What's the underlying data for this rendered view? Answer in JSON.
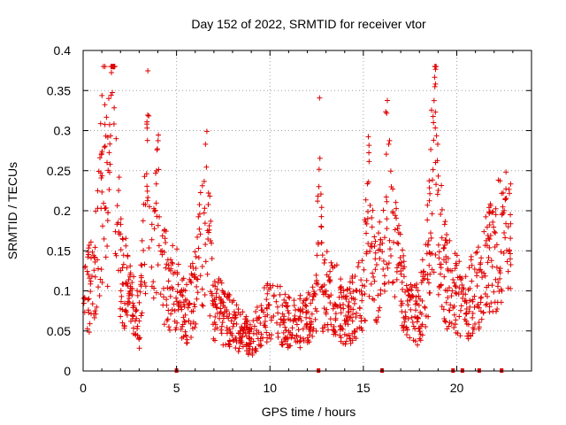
{
  "chart_data": {
    "type": "scatter",
    "title": "Day 152 of 2022, SRMTID for receiver vtor",
    "xlabel": "GPS time / hours",
    "ylabel": "SRMTID / TECUs",
    "xlim": [
      0,
      24
    ],
    "ylim": [
      0,
      0.4
    ],
    "xticks": [
      0,
      5,
      10,
      15,
      20
    ],
    "xtick_labels": [
      "0",
      "5",
      "10",
      "15",
      "20"
    ],
    "yticks": [
      0,
      0.05,
      0.1,
      0.15,
      0.2,
      0.25,
      0.3,
      0.35,
      0.4
    ],
    "ytick_labels": [
      "0",
      "0.05",
      "0.1",
      "0.15",
      "0.2",
      "0.25",
      "0.3",
      "0.35",
      "0.4"
    ],
    "grid": true,
    "marker": "plus",
    "color": "#e00000",
    "series": [
      {
        "name": "SRMTID",
        "profile": [
          [
            0.0,
            0.1
          ],
          [
            0.3,
            0.1
          ],
          [
            0.6,
            0.13
          ],
          [
            0.9,
            0.19
          ],
          [
            1.1,
            0.26
          ],
          [
            1.3,
            0.23
          ],
          [
            1.5,
            0.3
          ],
          [
            1.65,
            0.37
          ],
          [
            1.85,
            0.22
          ],
          [
            2.0,
            0.13
          ],
          [
            2.5,
            0.09
          ],
          [
            3.0,
            0.06
          ],
          [
            3.2,
            0.12
          ],
          [
            3.4,
            0.25
          ],
          [
            3.5,
            0.33
          ],
          [
            3.7,
            0.13
          ],
          [
            4.0,
            0.2
          ],
          [
            4.3,
            0.12
          ],
          [
            5.0,
            0.1
          ],
          [
            5.5,
            0.07
          ],
          [
            6.0,
            0.1
          ],
          [
            6.6,
            0.2
          ],
          [
            7.0,
            0.08
          ],
          [
            7.5,
            0.07
          ],
          [
            8.0,
            0.06
          ],
          [
            8.5,
            0.05
          ],
          [
            9.0,
            0.04
          ],
          [
            9.5,
            0.06
          ],
          [
            10.0,
            0.08
          ],
          [
            10.5,
            0.07
          ],
          [
            11.0,
            0.06
          ],
          [
            11.5,
            0.06
          ],
          [
            12.0,
            0.07
          ],
          [
            12.5,
            0.08
          ],
          [
            12.65,
            0.26
          ],
          [
            12.8,
            0.1
          ],
          [
            13.5,
            0.09
          ],
          [
            14.0,
            0.07
          ],
          [
            14.5,
            0.08
          ],
          [
            15.0,
            0.1
          ],
          [
            15.3,
            0.2
          ],
          [
            15.6,
            0.14
          ],
          [
            16.0,
            0.12
          ],
          [
            16.2,
            0.26
          ],
          [
            16.5,
            0.17
          ],
          [
            16.8,
            0.13
          ],
          [
            17.2,
            0.09
          ],
          [
            17.6,
            0.07
          ],
          [
            18.0,
            0.07
          ],
          [
            18.5,
            0.15
          ],
          [
            18.85,
            0.3
          ],
          [
            19.0,
            0.18
          ],
          [
            19.4,
            0.12
          ],
          [
            19.8,
            0.1
          ],
          [
            20.2,
            0.09
          ],
          [
            20.5,
            0.08
          ],
          [
            20.9,
            0.1
          ],
          [
            21.3,
            0.11
          ],
          [
            21.8,
            0.14
          ],
          [
            22.3,
            0.17
          ],
          [
            22.9,
            0.16
          ]
        ]
      }
    ],
    "gap_markers_x": [
      5.0,
      12.6,
      16.0,
      19.8,
      20.3,
      21.2,
      22.4
    ]
  }
}
